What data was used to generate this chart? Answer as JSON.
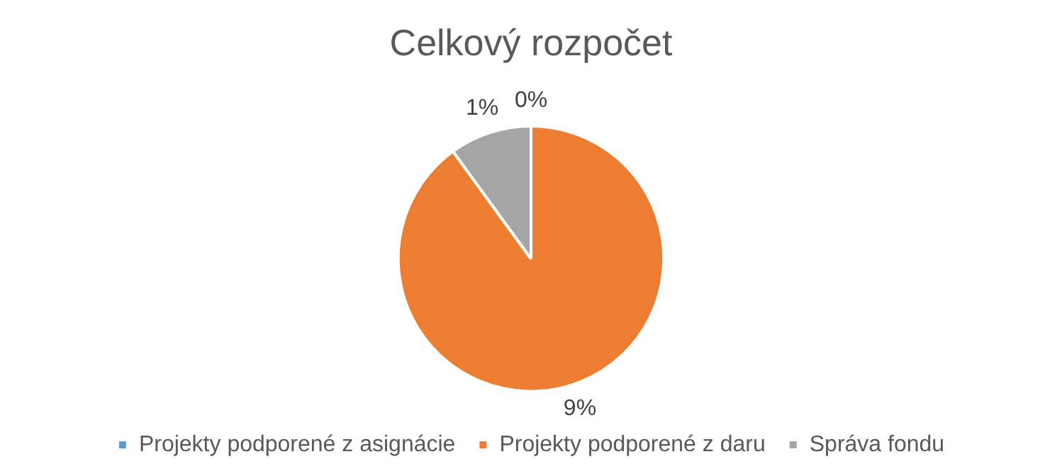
{
  "chart_data": {
    "type": "pie",
    "title": "Celkový rozpočet",
    "categories": [
      "Projekty podporené z asignácie",
      "Projekty podporené z daru",
      "Správa fondu"
    ],
    "values": [
      0,
      9,
      1
    ],
    "colors": [
      "#5b9bd5",
      "#ed7d31",
      "#a5a5a5"
    ],
    "value_labels": [
      "0%",
      "9%",
      "1%"
    ],
    "legend": "bottom"
  }
}
